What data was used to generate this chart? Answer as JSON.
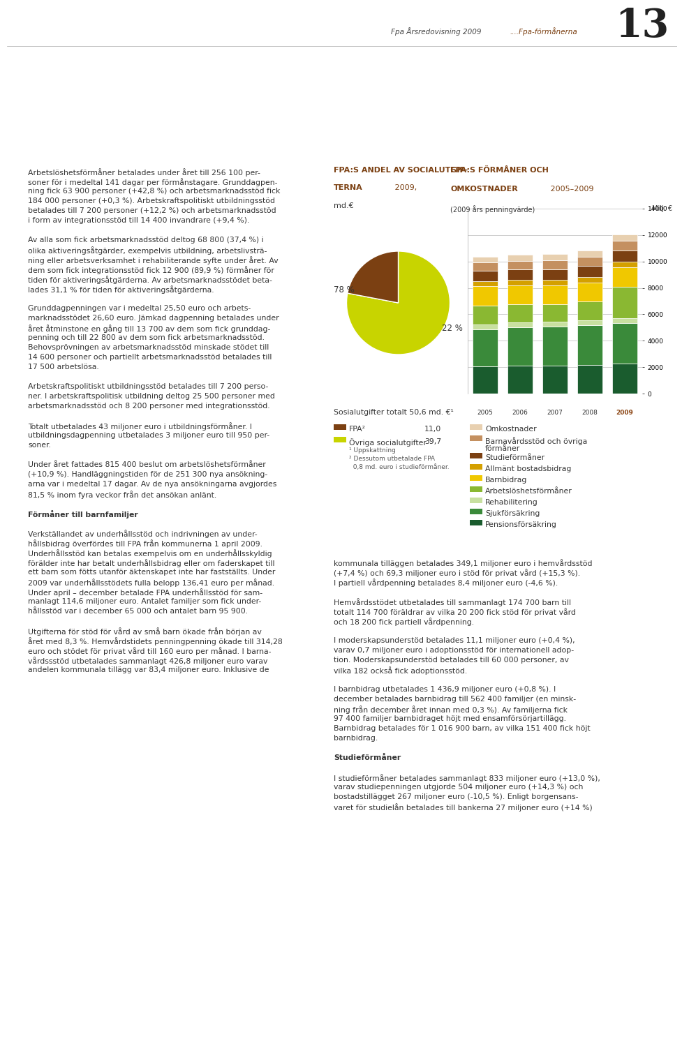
{
  "page_title": "Fpa Årsredovisning 2009",
  "page_title2": "....Fpa-förmånerna",
  "page_number": "13",
  "background_color": "#ffffff",
  "main_text_col1": [
    "Arbetslöshetsförmåner betalades under året till 256 100 per-",
    "soner för i medeltal 141 dagar per förmånstagare. Grunddagpen-",
    "ning fick 63 900 personer (+42,8 %) och arbetsmarknadsstöd fick",
    "184 000 personer (+0,3 %). Arbetskraftspolitiskt utbildningsstöd",
    "betalades till 7 200 personer (+12,2 %) och arbetsmarknadsstöd",
    "i form av integrationsstöd till 14 400 invandrare (+9,4 %).",
    "",
    "Av alla som fick arbetsmarknadsstöd deltog 68 800 (37,4 %) i",
    "olika aktiveringsåtgärder, exempelvis utbildning, arbetslivsträ-",
    "ning eller arbetsverksamhet i rehabiliterande syfte under året. Av",
    "dem som fick integrationsstöd fick 12 900 (89,9 %) förmåner för",
    "tiden för aktiveringsåtgärderna. Av arbetsmarknadsstödet beta-",
    "lades 31,1 % för tiden för aktiveringsåtgärderna.",
    "",
    "Grunddagpenningen var i medeltal 25,50 euro och arbets-",
    "marknadsstödet 26,60 euro. Jämkad dagpenning betalades under",
    "året åtminstone en gång till 13 700 av dem som fick grunddag-",
    "penning och till 22 800 av dem som fick arbetsmarknadsstöd.",
    "Behovsprövningen av arbetsmarknadsstöd minskade stödet till",
    "14 600 personer och partiellt arbetsmarknadsstöd betalades till",
    "17 500 arbetslösa.",
    "",
    "Arbetskraftspolitiskt utbildningsstöd betalades till 7 200 perso-",
    "ner. I arbetskraftspolitisk utbildning deltog 25 500 personer med",
    "arbetsmarknadsstöd och 8 200 personer med integrationsstöd.",
    "",
    "Totalt utbetalades 43 miljoner euro i utbildningsförmåner. I",
    "utbildningsdagpenning utbetalades 3 miljoner euro till 950 per-",
    "soner.",
    "",
    "Under året fattades 815 400 beslut om arbetslöshetsförmåner",
    "(+10,9 %). Handläggningstiden för de 251 300 nya ansökning-",
    "arna var i medeltal 17 dagar. Av de nya ansökningarna avgjordes",
    "81,5 % inom fyra veckor från det ansökan anlänt.",
    "",
    "Förmåner till barnfamiljer",
    "",
    "Verkställandet av underhållsstöd och indrivningen av under-",
    "hållsbidrag överfördes till FPA från kommunerna 1 april 2009.",
    "Underhållsstöd kan betalas exempelvis om en underhållsskyldig",
    "förälder inte har betalt underhållsbidrag eller om faderskapet till",
    "ett barn som fötts utanför äktenskapet inte har fastställts. Under",
    "2009 var underhållsstödets fulla belopp 136,41 euro per månad.",
    "Under april – december betalade FPA underhållsstöd för sam-",
    "manlagt 114,6 miljoner euro. Antalet familjer som fick under-",
    "hållsstöd var i december 65 000 och antalet barn 95 900.",
    "",
    "Utgifterna för stöd för vård av små barn ökade från början av",
    "året med 8,3 %. Hemvårdstidets penningpenning ökade till 314,28",
    "euro och stödet för privat vård till 160 euro per månad. I barna-",
    "vårdssstöd utbetalades sammanlagt 426,8 miljoner euro varav",
    "andelen kommunala tillägg var 83,4 miljoner euro. Inklusive de"
  ],
  "main_text_col2": [
    "kommunala tilläggen betalades 349,1 miljoner euro i hemvårdsstöd",
    "(+7,4 %) och 69,3 miljoner euro i stöd för privat vård (+15,3 %).",
    "I partiell vårdpenning betalades 8,4 miljoner euro (-4,6 %).",
    "",
    "Hemvårdsstödet utbetalades till sammanlagt 174 700 barn till",
    "totalt 114 700 föräldrar av vilka 20 200 fick stöd för privat vård",
    "och 18 200 fick partiell vårdpenning.",
    "",
    "I moderskapsunderstöd betalades 11,1 miljoner euro (+0,4 %),",
    "varav 0,7 miljoner euro i adoptionsstöd för internationell adop-",
    "tion. Moderskapsunderstöd betalades till 60 000 personer, av",
    "vilka 182 också fick adoptionsstöd.",
    "",
    "I barnbidrag utbetalades 1 436,9 miljoner euro (+0,8 %). I",
    "december betalades barnbidrag till 562 400 familjer (en minsk-",
    "ning från december året innan med 0,3 %). Av familjerna fick",
    "97 400 familjer barnbidraget höjt med ensamförsörjartillägg.",
    "Barnbidrag betalades för 1 016 900 barn, av vilka 151 400 fick höjt",
    "barnbidrag.",
    "",
    "Studieförmåner",
    "",
    "I studieförmåner betalades sammanlagt 833 miljoner euro (+13,0 %),",
    "varav studiepenningen utgjorde 504 miljoner euro (+14,3 %) och",
    "bostadstillägget 267 miljoner euro (-10,5 %). Enligt borgensans-",
    "varet för studielån betalades till bankerna 27 miljoner euro (+14 %)"
  ],
  "pie_title1_bold": "FPA:S ANDEL AV SOCIALUTGIF-",
  "pie_title2_bold": "TERNA",
  "pie_title2_normal": " 2009,",
  "pie_subtitle": "md.€",
  "pie_values": [
    78,
    22
  ],
  "pie_colors": [
    "#c8d400",
    "#7b4012"
  ],
  "pie_label_78": "78 %",
  "pie_label_22": "22 %",
  "pie_total_label": "Sosialutgifter totalt 50,6 md. €¹",
  "pie_legend": [
    {
      "label": "FPA²",
      "value": "11,0",
      "color": "#7b4012"
    },
    {
      "label": "Övriga socialutgifter",
      "value": "39,7",
      "color": "#c8d400"
    }
  ],
  "pie_footnote1": "¹ Uppskattning",
  "pie_footnote2": "² Dessutom utbetalade FPA",
  "pie_footnote3": "  0,8 md. euro i studieförmåner.",
  "bar_title1_bold": "FPA:S FÖRMÅNER OCH",
  "bar_title2_bold": "OMKOSTNADER",
  "bar_title2_normal": " 2005–2009",
  "bar_subtitle": "(2009 års penningvärde)",
  "bar_ylabel": "Milj. €",
  "bar_ylim": [
    0,
    14000
  ],
  "bar_yticks": [
    0,
    2000,
    4000,
    6000,
    8000,
    10000,
    12000,
    14000
  ],
  "bar_years": [
    "2005",
    "2006",
    "2007",
    "2008",
    "2009"
  ],
  "bar_year_colors": [
    "#333333",
    "#333333",
    "#333333",
    "#333333",
    "#8b4513"
  ],
  "bar_categories": [
    "Pensionsförsäkring",
    "Sjukförsäkring",
    "Rehabilitering",
    "Arbetslöshetsförmåner",
    "Barnbidrag",
    "Allmänt bostadsbidrag",
    "Studieförmåner",
    "Barnavårdsstöd och övriga förmåner",
    "Omkostnader"
  ],
  "bar_colors_list": [
    "#1a5c2e",
    "#3a8a3a",
    "#c8e0a0",
    "#8ab832",
    "#f0c800",
    "#d4a000",
    "#7b4012",
    "#c49060",
    "#e8d0b0"
  ],
  "bar_data": {
    "Pensionsförsäkring": [
      2050,
      2100,
      2120,
      2180,
      2250
    ],
    "Sjukförsäkring": [
      2800,
      2900,
      2950,
      3000,
      3100
    ],
    "Rehabilitering": [
      380,
      390,
      390,
      390,
      380
    ],
    "Arbetslöshetsförmåner": [
      1450,
      1350,
      1280,
      1400,
      2350
    ],
    "Barnbidrag": [
      1430,
      1430,
      1440,
      1450,
      1470
    ],
    "Allmänt bostadsbidrag": [
      410,
      420,
      420,
      420,
      440
    ],
    "Studieförmåner": [
      760,
      790,
      810,
      820,
      860
    ],
    "Barnavårdsstöd och övriga förmåner": [
      650,
      670,
      680,
      700,
      720
    ],
    "Omkostnader": [
      440,
      450,
      460,
      460,
      470
    ]
  },
  "legend_right": [
    {
      "label": "Omkostnader",
      "color": "#e8d0b0"
    },
    {
      "label": "Barnavårdsstöd och övriga\nförmåner",
      "color": "#c49060"
    },
    {
      "label": "Studieförmåner",
      "color": "#7b4012"
    },
    {
      "label": "Allmänt bostadsbidrag",
      "color": "#d4a000"
    },
    {
      "label": "Barnbidrag",
      "color": "#f0c800"
    },
    {
      "label": "Arbetslöshetsförmåner",
      "color": "#8ab832"
    },
    {
      "label": "Rehabilitering",
      "color": "#c8e0a0"
    },
    {
      "label": "Sjukförsäkring",
      "color": "#3a8a3a"
    },
    {
      "label": "Pensionsförsäkring",
      "color": "#1a5c2e"
    }
  ],
  "header_line_color": "#aaaaaa",
  "text_color": "#333333",
  "title_color": "#7b4012"
}
